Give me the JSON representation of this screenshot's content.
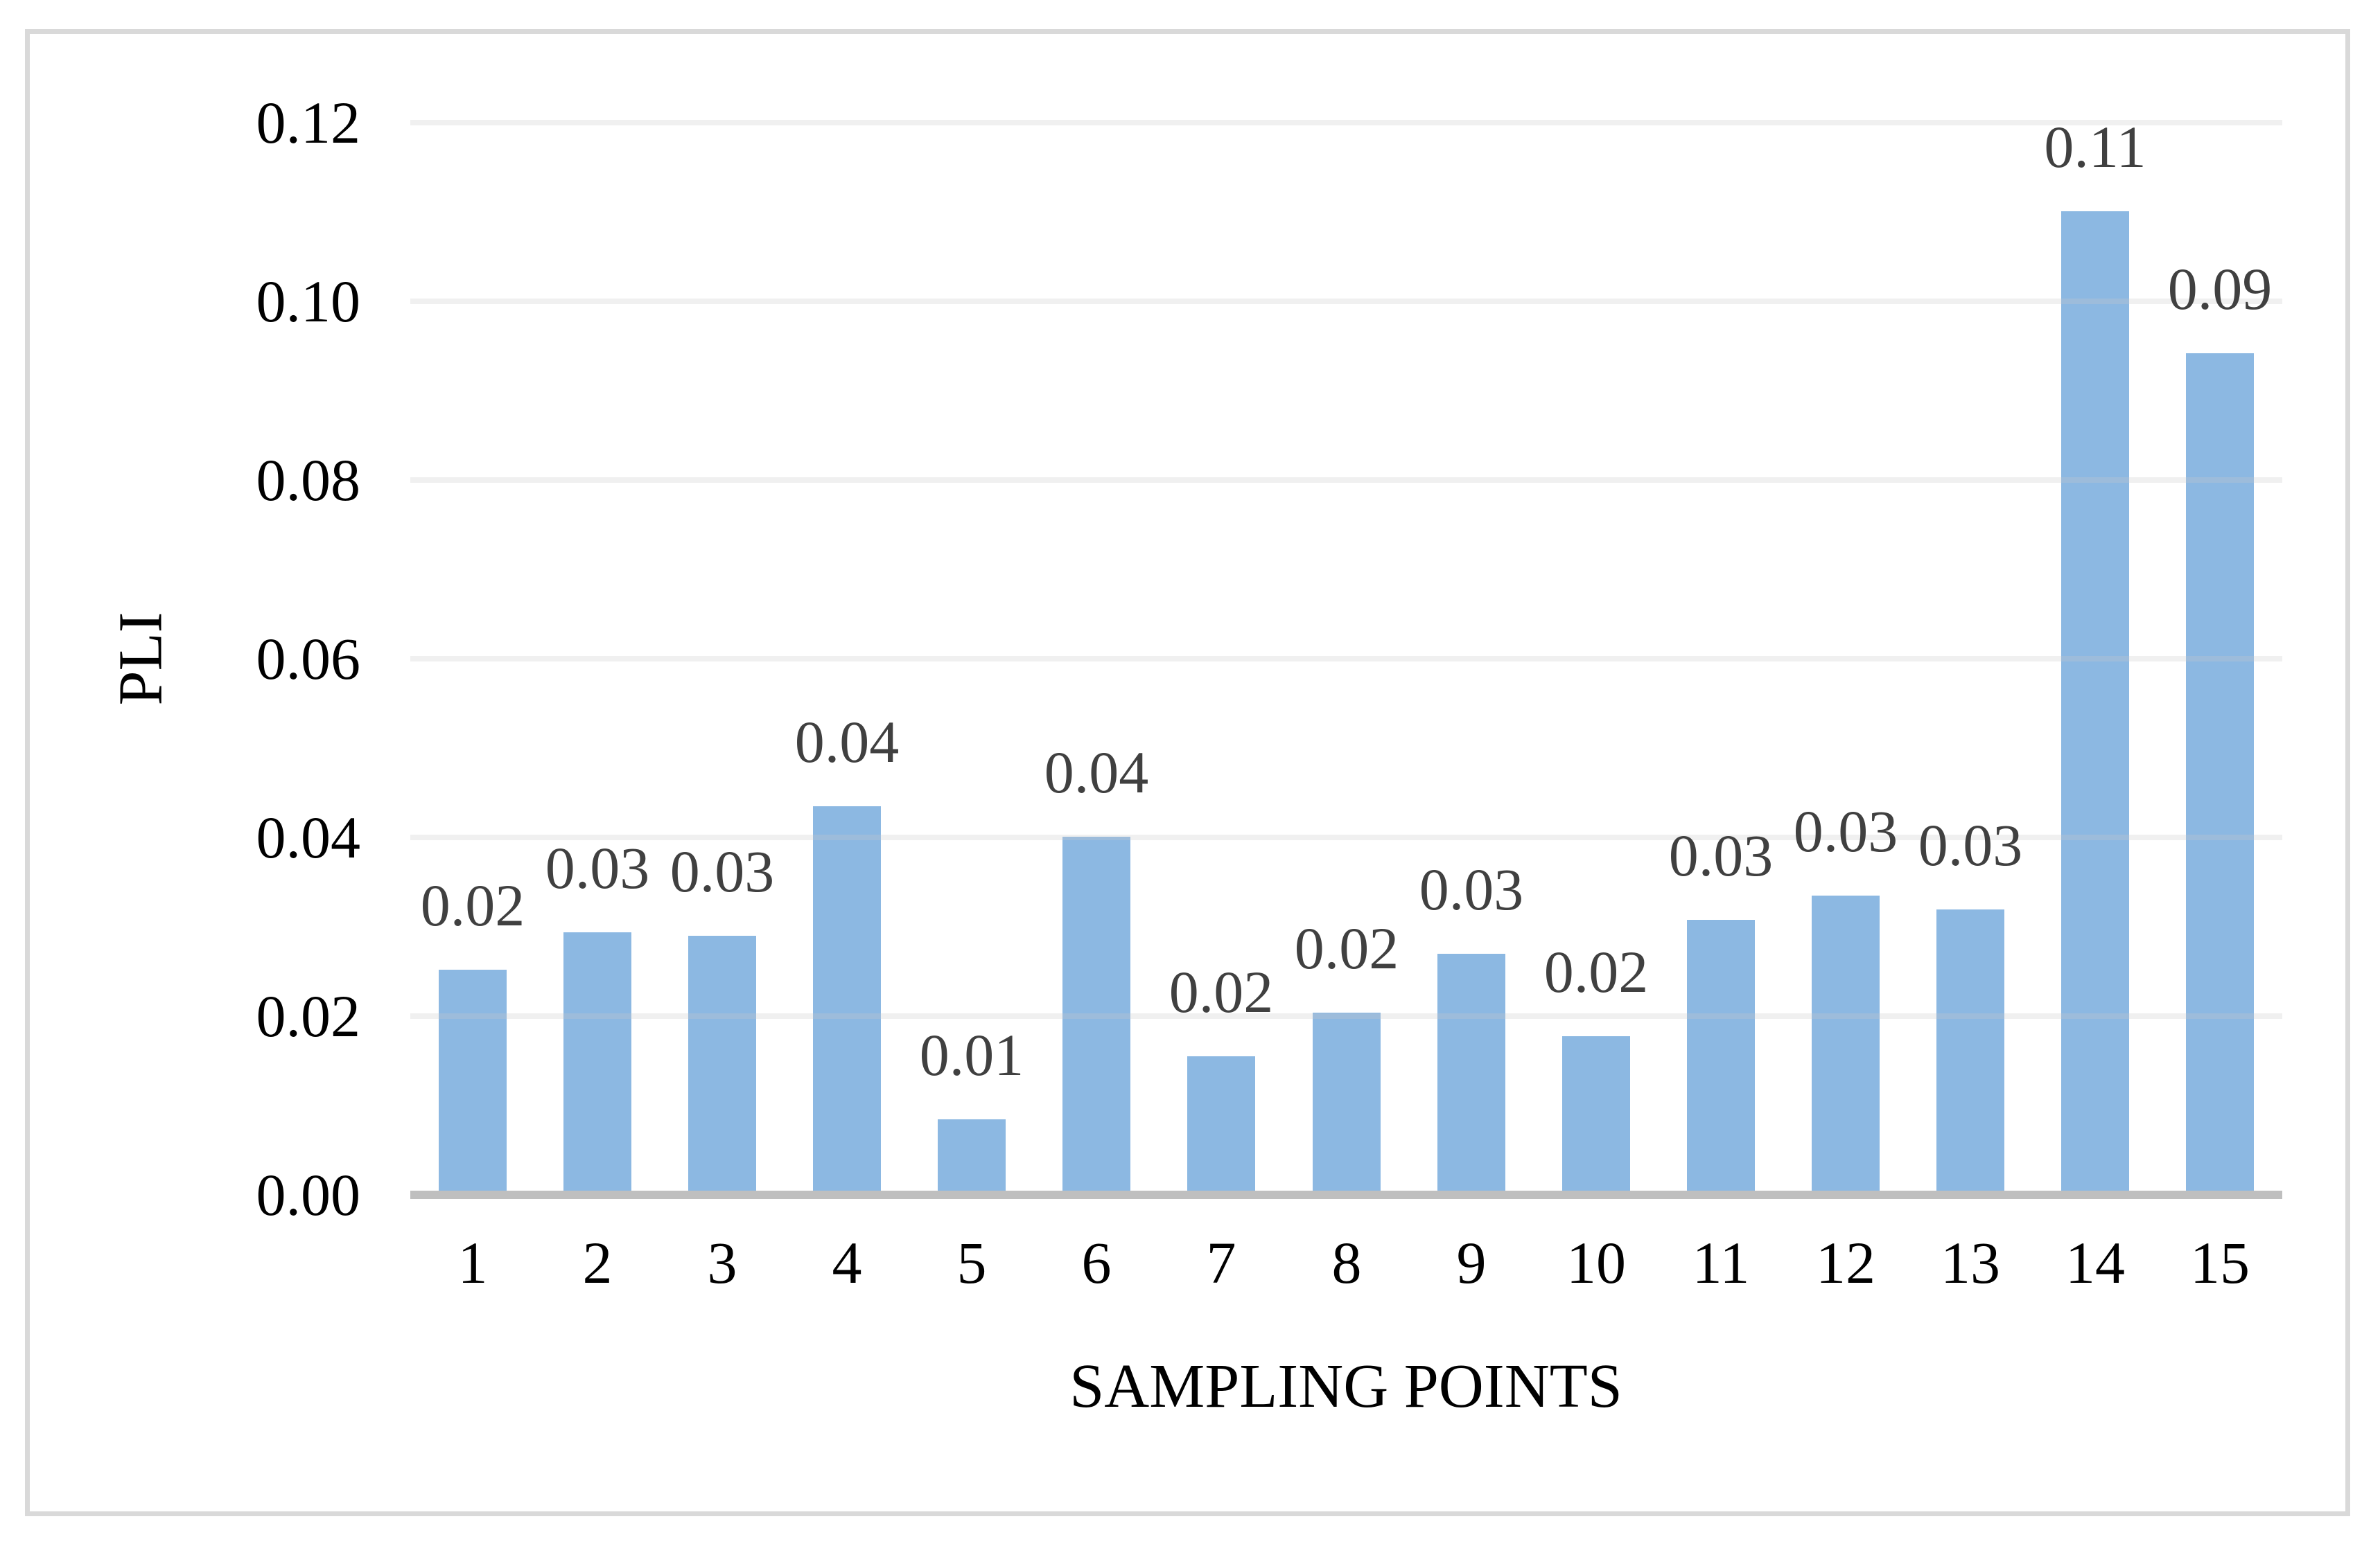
{
  "chart_data": {
    "type": "bar",
    "title": "",
    "xlabel": "SAMPLING POINTS",
    "ylabel": "PLI",
    "categories": [
      "1",
      "2",
      "3",
      "4",
      "5",
      "6",
      "7",
      "8",
      "9",
      "10",
      "11",
      "12",
      "13",
      "14",
      "15"
    ],
    "values": [
      0.0247,
      0.0289,
      0.0285,
      0.043,
      0.008,
      0.0396,
      0.015,
      0.0199,
      0.0265,
      0.0173,
      0.0303,
      0.033,
      0.0315,
      0.1096,
      0.0937
    ],
    "data_labels": [
      "0.02",
      "0.03",
      "0.03",
      "0.04",
      "0.01",
      "0.04",
      "0.02",
      "0.02",
      "0.03",
      "0.02",
      "0.03",
      "0.03",
      "0.03",
      "0.11",
      "0.09"
    ],
    "y_ticks": [
      "0.00",
      "0.02",
      "0.04",
      "0.06",
      "0.08",
      "0.10",
      "0.12"
    ],
    "ylim": [
      0,
      0.12
    ],
    "grid": true,
    "legend_position": "none",
    "bar_color": "#8CB8E2",
    "data_label_color": "#404040",
    "tick_label_color": "#000000",
    "axis_line_color": "#BFBFBF",
    "gridline_color": "#F1F1F1",
    "frame_border_color": "#D9D9D9",
    "background_color": "#FFFFFF"
  }
}
